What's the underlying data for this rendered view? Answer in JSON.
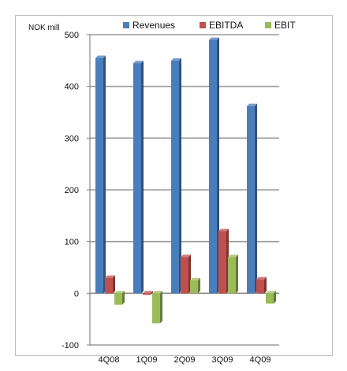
{
  "chart_data": {
    "type": "bar",
    "title": "",
    "unit_label": "NOK mill",
    "xlabel": "",
    "ylabel": "",
    "categories": [
      "4Q08",
      "1Q09",
      "2Q09",
      "3Q09",
      "4Q09"
    ],
    "series": [
      {
        "name": "Revenues",
        "color": "#4a7ebb",
        "values": [
          455,
          445,
          450,
          490,
          362
        ]
      },
      {
        "name": "EBITDA",
        "color": "#c0504d",
        "values": [
          30,
          -3,
          70,
          120,
          27
        ]
      },
      {
        "name": "EBIT",
        "color": "#9bbb59",
        "values": [
          -22,
          -58,
          25,
          70,
          -20
        ]
      }
    ],
    "ylim": [
      -100,
      500
    ],
    "yticks": [
      -100,
      0,
      100,
      200,
      300,
      400,
      500
    ],
    "grid": true,
    "legend_position": "top"
  }
}
